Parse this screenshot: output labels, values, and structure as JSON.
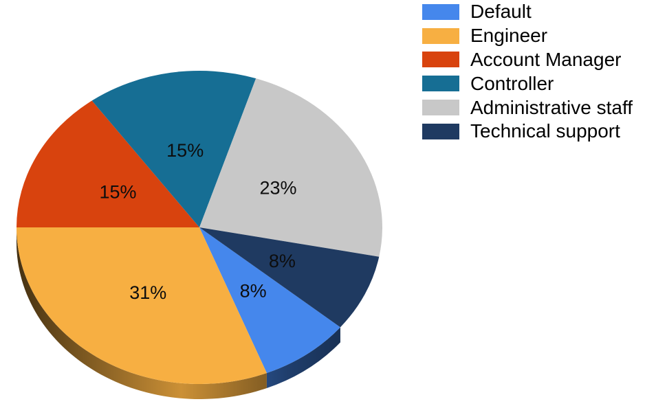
{
  "chart_data": {
    "type": "pie",
    "effect": "3d",
    "title": "",
    "background_color": "#ffffff",
    "legend_position": "top-right",
    "start_angle_deg_clockwise_from_top": 129.6,
    "data_label_color": "#0d0d0d",
    "slices": [
      {
        "label": "Default",
        "value_pct": 8,
        "data_label": "8%",
        "color": "#4587EC"
      },
      {
        "label": "Engineer",
        "value_pct": 31,
        "data_label": "31%",
        "color": "#F7AF42"
      },
      {
        "label": "Account Manager",
        "value_pct": 15,
        "data_label": "15%",
        "color": "#D8430E"
      },
      {
        "label": "Controller",
        "value_pct": 15,
        "data_label": "15%",
        "color": "#166E94"
      },
      {
        "label": "Administrative staff",
        "value_pct": 23,
        "data_label": "23%",
        "color": "#C8C8C8"
      },
      {
        "label": "Technical support",
        "value_pct": 8,
        "data_label": "8%",
        "color": "#1F3A61"
      }
    ],
    "legend_entries": [
      "Default",
      "Engineer",
      "Account Manager",
      "Controller",
      "Administrative staff",
      "Technical support"
    ]
  }
}
